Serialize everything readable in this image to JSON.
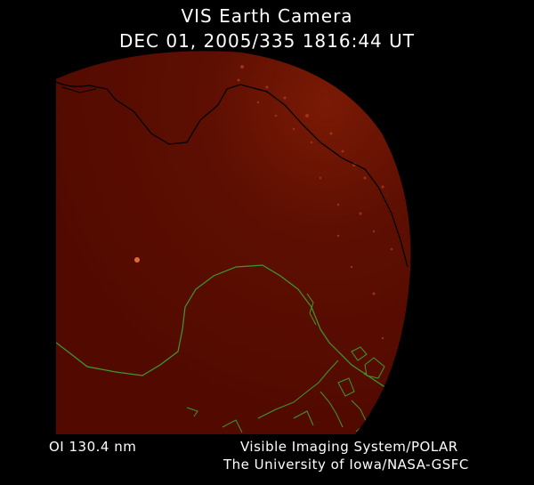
{
  "header": {
    "title": "VIS Earth Camera",
    "timestamp": "DEC 01, 2005/335 1816:44 UT"
  },
  "footer": {
    "filter": "OI  130.4 nm",
    "instrument": "Visible Imaging System/POLAR",
    "institution": "The University of Iowa/NASA-GSFC"
  },
  "colors": {
    "background": "#000000",
    "disk": "#5a0c00",
    "coastline_north": "#000000",
    "coastline_south": "#3f9a2c",
    "aurora_spot": "#e06a30",
    "text": "#ffffff"
  }
}
